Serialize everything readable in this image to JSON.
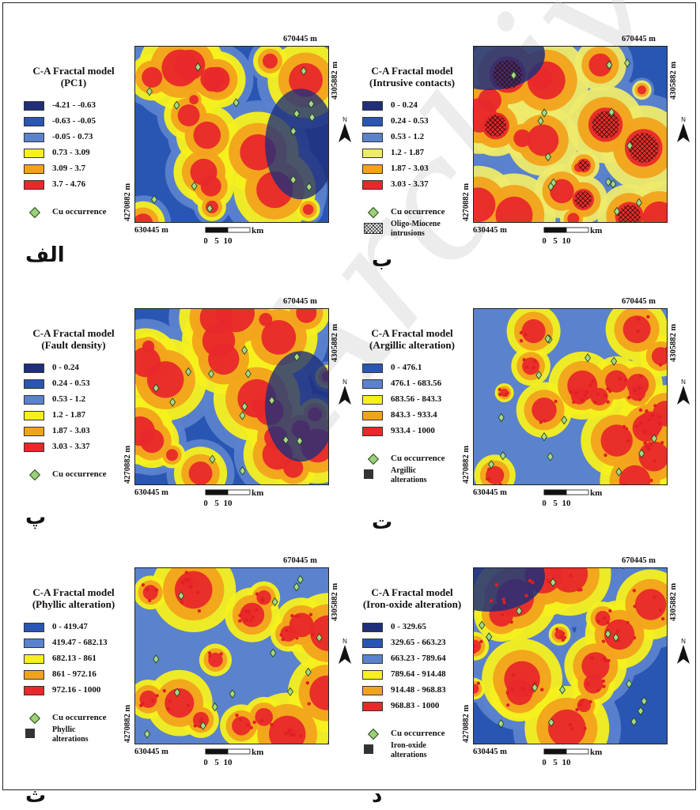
{
  "watermark": "Archive",
  "common": {
    "top_right_coord": "670445 m",
    "right_coord": "4305882 m",
    "left_coord": "4270882 m",
    "bottom_left_coord": "630445 m",
    "north_label": "N",
    "scale_unit": "km",
    "scale_ticks": [
      "0",
      "5",
      "10"
    ],
    "cu_occurrence": "Cu occurrence"
  },
  "panels": [
    {
      "id": "pc1",
      "label": "الف",
      "title_line1": "C-A Fractal model",
      "title_line2": "(PC1)",
      "classes": [
        {
          "range": "-4.21 - -0.63",
          "color": "#1f2f7a"
        },
        {
          "range": "-0.63 - -0.05",
          "color": "#2a56b3"
        },
        {
          "range": "-0.05 - 0.73",
          "color": "#5b82cc"
        },
        {
          "range": "0.73 - 3.09",
          "color": "#f5f01e"
        },
        {
          "range": "3.09 - 3.7",
          "color": "#f2a31c"
        },
        {
          "range": "3.7 - 4.76",
          "color": "#e8282a"
        }
      ],
      "extra_legend": null
    },
    {
      "id": "intrusive",
      "label": "ب",
      "title_line1": "C-A Fractal model",
      "title_line2": "(Intrusive contacts)",
      "classes": [
        {
          "range": "0 - 0.24",
          "color": "#1f2f7a"
        },
        {
          "range": "0.24 - 0.53",
          "color": "#2a56b3"
        },
        {
          "range": "0.53 - 1.2",
          "color": "#5b82cc"
        },
        {
          "range": "1.2 - 1.87",
          "color": "#eeea6a"
        },
        {
          "range": "1.87 - 3.03",
          "color": "#f2a31c"
        },
        {
          "range": "3.03 - 3.37",
          "color": "#e8282a"
        }
      ],
      "extra_legend": {
        "text1": "Oligo-Miocene",
        "text2": "intrusions",
        "type": "hatch"
      }
    },
    {
      "id": "fault",
      "label": "پ",
      "title_line1": "C-A Fractal model",
      "title_line2": "(Fault density)",
      "classes": [
        {
          "range": "0 - 0.24",
          "color": "#1f2f7a"
        },
        {
          "range": "0.24 - 0.53",
          "color": "#2a56b3"
        },
        {
          "range": "0.53 - 1.2",
          "color": "#5b82cc"
        },
        {
          "range": "1.2 - 1.87",
          "color": "#f5f01e"
        },
        {
          "range": "1.87 - 3.03",
          "color": "#f2a31c"
        },
        {
          "range": "3.03 - 3.37",
          "color": "#e8282a"
        }
      ],
      "extra_legend": null
    },
    {
      "id": "argillic",
      "label": "ت",
      "title_line1": "C-A Fractal model",
      "title_line2": "(Argillic alteration)",
      "classes": [
        {
          "range": "0 - 476.1",
          "color": "#2a56b3"
        },
        {
          "range": "476.1 - 683.56",
          "color": "#5b82cc"
        },
        {
          "range": "683.56 - 843.3",
          "color": "#f5f01e"
        },
        {
          "range": "843.3 - 933.4",
          "color": "#f2a31c"
        },
        {
          "range": "933.4 - 1000",
          "color": "#e8282a"
        }
      ],
      "extra_legend": {
        "text1": "Argillic",
        "text2": "alterations",
        "type": "square"
      }
    },
    {
      "id": "phyllic",
      "label": "ث",
      "title_line1": "C-A Fractal model",
      "title_line2": "(Phyllic alteration)",
      "classes": [
        {
          "range": "0 - 419.47",
          "color": "#2a56b3"
        },
        {
          "range": "419.47 - 682.13",
          "color": "#5b82cc"
        },
        {
          "range": "682.13 - 861",
          "color": "#f5f01e"
        },
        {
          "range": "861 - 972.16",
          "color": "#f2a31c"
        },
        {
          "range": "972.16 - 1000",
          "color": "#e8282a"
        }
      ],
      "extra_legend": {
        "text1": "Phyllic",
        "text2": "alterations",
        "type": "square"
      }
    },
    {
      "id": "ironoxide",
      "label": "د",
      "title_line1": "C-A Fractal model",
      "title_line2": "(Iron-oxide alteration)",
      "classes": [
        {
          "range": "0 - 329.65",
          "color": "#1f2f7a"
        },
        {
          "range": "329.65 - 663.23",
          "color": "#2a56b3"
        },
        {
          "range": "663.23 - 789.64",
          "color": "#5b82cc"
        },
        {
          "range": "789.64 - 914.48",
          "color": "#f5f01e"
        },
        {
          "range": "914.48 - 968.83",
          "color": "#f2a31c"
        },
        {
          "range": "968.83 - 1000",
          "color": "#e8282a"
        }
      ],
      "extra_legend": {
        "text1": "Iron-oxide",
        "text2": "alterations",
        "type": "square"
      }
    }
  ]
}
